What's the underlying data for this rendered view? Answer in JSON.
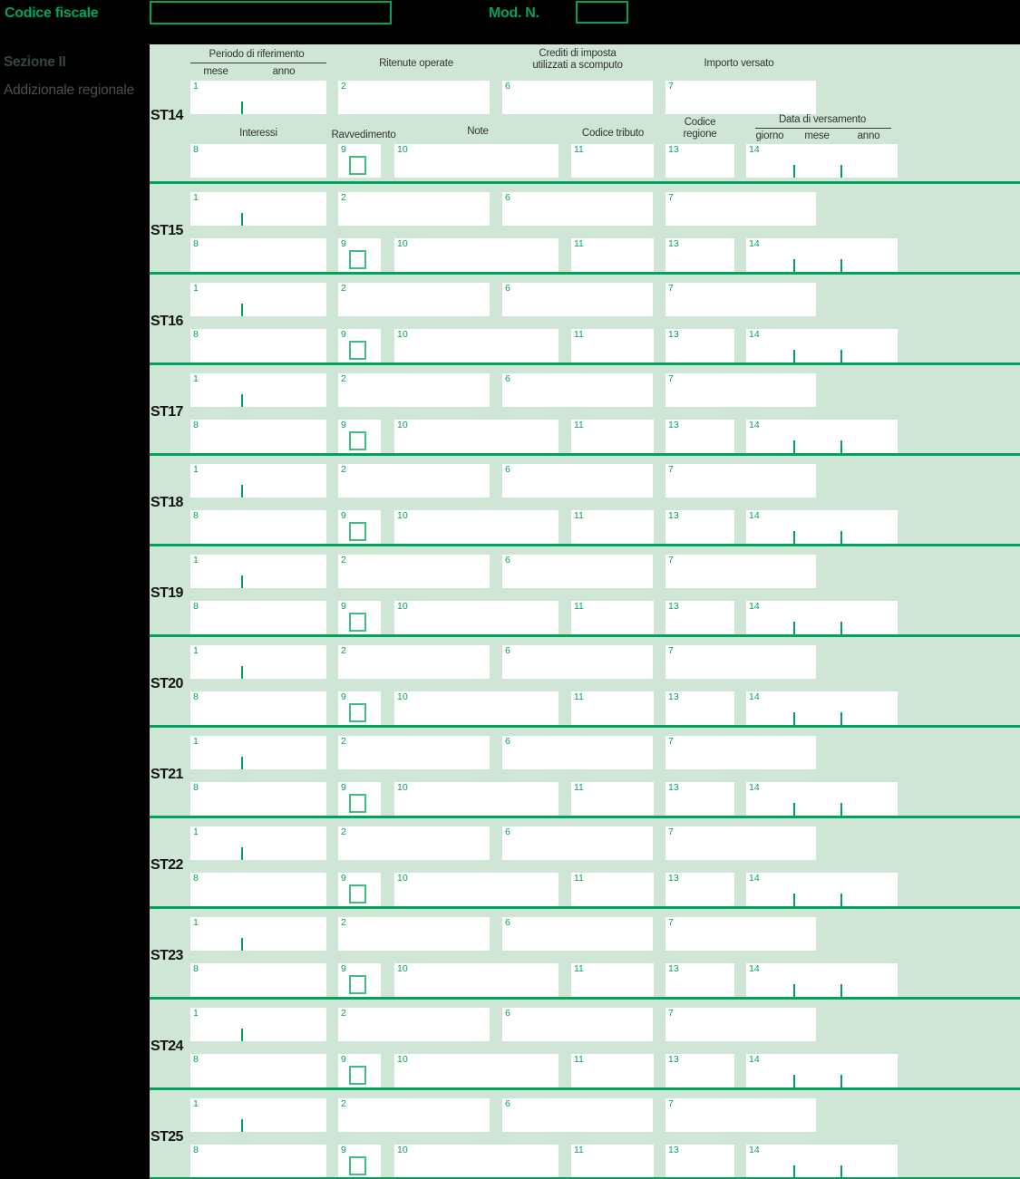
{
  "topbar": {
    "codice_fiscale_label": "Codice fiscale",
    "codice_fiscale_value": "",
    "mod_n_label": "Mod. N.",
    "mod_n_value": ""
  },
  "sidebar": {
    "section_title": "Sezione II",
    "section_subtitle": "Addizionale regionale"
  },
  "table_headers": {
    "periodo": "Periodo di riferimento",
    "mese": "mese",
    "anno": "anno",
    "ritenute": "Ritenute operate",
    "crediti_line1": "Crediti di imposta",
    "crediti_line2": "utilizzati a scomputo",
    "importo": "Importo versato",
    "interessi": "Interessi",
    "ravvedimento": "Ravvedimento",
    "note": "Note",
    "codice_tributo": "Codice tributo",
    "codice_regione_line1": "Codice",
    "codice_regione_line2": "regione",
    "data_versamento": "Data di versamento",
    "giorno": "giorno",
    "mese2": "mese",
    "anno2": "anno"
  },
  "field_numbers": {
    "f1": "1",
    "f2": "2",
    "f6": "6",
    "f7": "7",
    "f8": "8",
    "f9": "9",
    "f10": "10",
    "f11": "11",
    "f13": "13",
    "f14": "14"
  },
  "rows": [
    {
      "label": "ST14",
      "fields": {
        "1": "",
        "2": "",
        "6": "",
        "7": "",
        "8": "",
        "9_ravvedimento_checked": false,
        "10": "",
        "11": "",
        "13": "",
        "14": ""
      }
    },
    {
      "label": "ST15",
      "fields": {
        "1": "",
        "2": "",
        "6": "",
        "7": "",
        "8": "",
        "9_ravvedimento_checked": false,
        "10": "",
        "11": "",
        "13": "",
        "14": ""
      }
    },
    {
      "label": "ST16",
      "fields": {
        "1": "",
        "2": "",
        "6": "",
        "7": "",
        "8": "",
        "9_ravvedimento_checked": false,
        "10": "",
        "11": "",
        "13": "",
        "14": ""
      }
    },
    {
      "label": "ST17",
      "fields": {
        "1": "",
        "2": "",
        "6": "",
        "7": "",
        "8": "",
        "9_ravvedimento_checked": false,
        "10": "",
        "11": "",
        "13": "",
        "14": ""
      }
    },
    {
      "label": "ST18",
      "fields": {
        "1": "",
        "2": "",
        "6": "",
        "7": "",
        "8": "",
        "9_ravvedimento_checked": false,
        "10": "",
        "11": "",
        "13": "",
        "14": ""
      }
    },
    {
      "label": "ST19",
      "fields": {
        "1": "",
        "2": "",
        "6": "",
        "7": "",
        "8": "",
        "9_ravvedimento_checked": false,
        "10": "",
        "11": "",
        "13": "",
        "14": ""
      }
    },
    {
      "label": "ST20",
      "fields": {
        "1": "",
        "2": "",
        "6": "",
        "7": "",
        "8": "",
        "9_ravvedimento_checked": false,
        "10": "",
        "11": "",
        "13": "",
        "14": ""
      }
    },
    {
      "label": "ST21",
      "fields": {
        "1": "",
        "2": "",
        "6": "",
        "7": "",
        "8": "",
        "9_ravvedimento_checked": false,
        "10": "",
        "11": "",
        "13": "",
        "14": ""
      }
    },
    {
      "label": "ST22",
      "fields": {
        "1": "",
        "2": "",
        "6": "",
        "7": "",
        "8": "",
        "9_ravvedimento_checked": false,
        "10": "",
        "11": "",
        "13": "",
        "14": ""
      }
    },
    {
      "label": "ST23",
      "fields": {
        "1": "",
        "2": "",
        "6": "",
        "7": "",
        "8": "",
        "9_ravvedimento_checked": false,
        "10": "",
        "11": "",
        "13": "",
        "14": ""
      }
    },
    {
      "label": "ST24",
      "fields": {
        "1": "",
        "2": "",
        "6": "",
        "7": "",
        "8": "",
        "9_ravvedimento_checked": false,
        "10": "",
        "11": "",
        "13": "",
        "14": ""
      }
    },
    {
      "label": "ST25",
      "fields": {
        "1": "",
        "2": "",
        "6": "",
        "7": "",
        "8": "",
        "9_ravvedimento_checked": false,
        "10": "",
        "11": "",
        "13": "",
        "14": ""
      }
    }
  ],
  "colors": {
    "accent_green": "#00a35d",
    "form_background": "#cfe5d5",
    "checkbox_border": "#43bb83",
    "box_white": "#ffffff"
  }
}
